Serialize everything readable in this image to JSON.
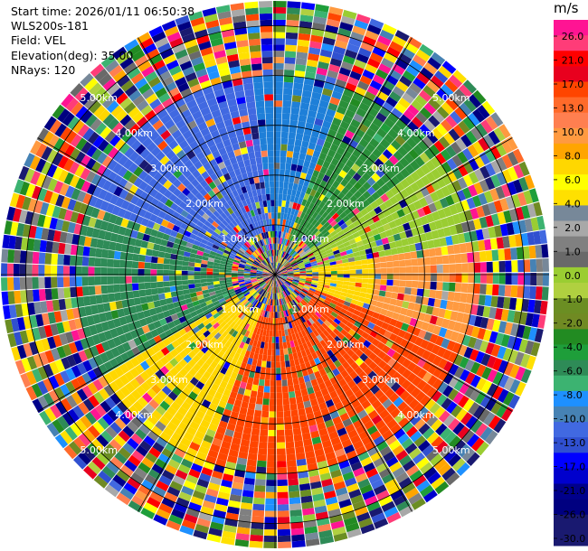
{
  "header": {
    "start_time": "Start time: 2026/01/11 06:50:38",
    "instrument": "WLS200s-181",
    "field": "Field: VEL",
    "elevation": "Elevation(deg): 35.00",
    "nrays": "NRays: 120"
  },
  "colorbar": {
    "unit": "m/s",
    "ticks": [
      "26.0",
      "21.0",
      "17.0",
      "13.0",
      "10.0",
      "8.0",
      "6.0",
      "4.0",
      "2.0",
      "1.0",
      "0.0",
      "-1.0",
      "-2.0",
      "-4.0",
      "-6.0",
      "-8.0",
      "-10.0",
      "-13.0",
      "-17.0",
      "-21.0",
      "-26.0",
      "-30.0"
    ],
    "colors": [
      "#ff1493",
      "#ff3c78",
      "#ff0000",
      "#e8001e",
      "#ff4500",
      "#ff6a2a",
      "#ff7f50",
      "#ff9a40",
      "#ffa500",
      "#ffd700",
      "#ffff00",
      "#ffe000",
      "#778899",
      "#a8a8a8",
      "#808080",
      "#696969",
      "#9acd32",
      "#b0d040",
      "#6b8e23",
      "#708a23",
      "#228b22",
      "#1e9e3a",
      "#2e8b57",
      "#3cb371",
      "#1e90ff",
      "#4682b4",
      "#4169e1",
      "#3050d0",
      "#0000ff",
      "#0000cd",
      "#00008b",
      "#000080",
      "#191970",
      "#1a1a70"
    ]
  },
  "chart_data": {
    "type": "heatmap",
    "title": "",
    "field": "VEL",
    "unit": "m/s",
    "nrays": 120,
    "elevation_deg": 35.0,
    "range_rings_km": [
      1.0,
      2.0,
      3.0,
      4.0,
      5.0
    ],
    "ring_labels": [
      "1.00km",
      "2.00km",
      "3.00km",
      "4.00km",
      "5.00km"
    ],
    "max_range_km": 5.5,
    "colorbar_range": [
      -30.0,
      30.0
    ],
    "grid": true
  }
}
